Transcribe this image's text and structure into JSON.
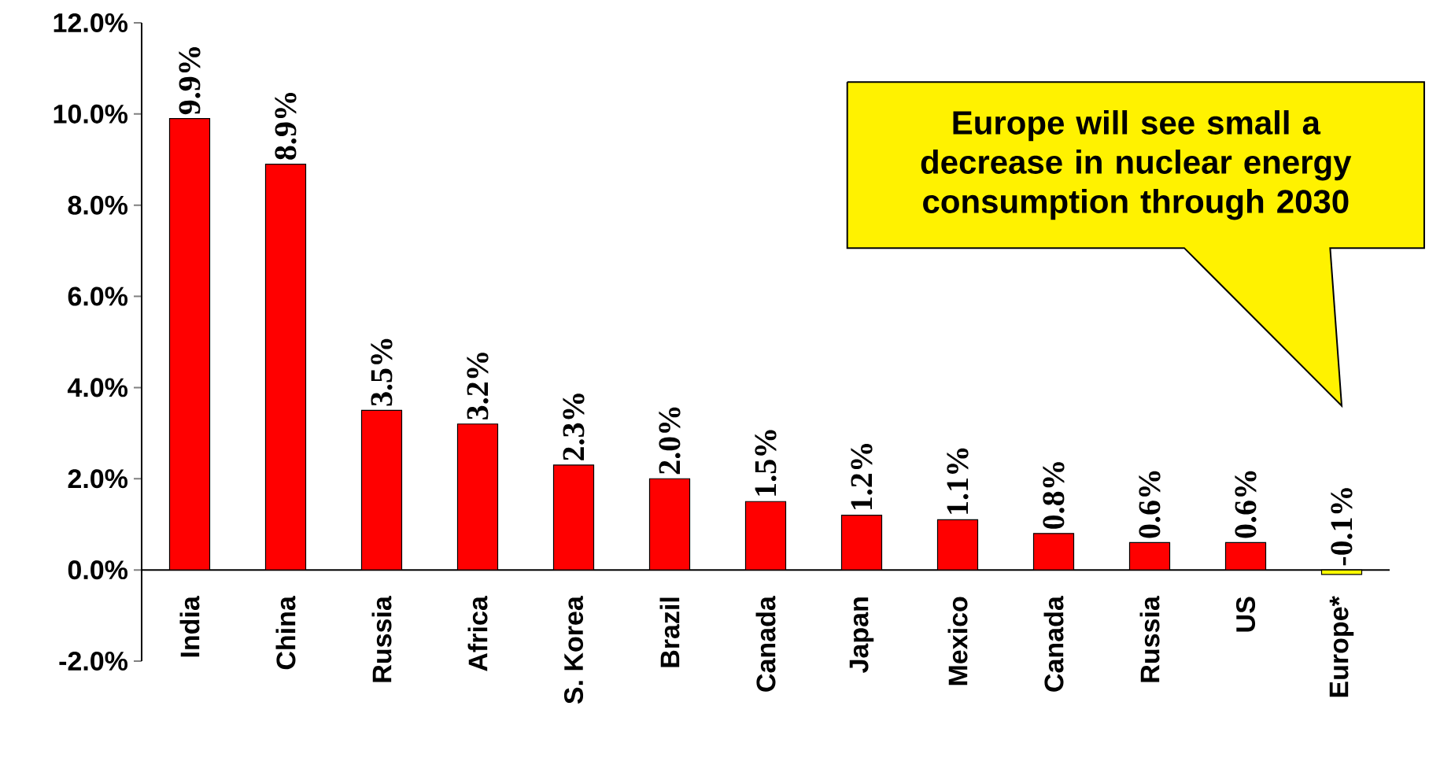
{
  "chart_data": {
    "type": "bar",
    "categories": [
      "India",
      "China",
      "Russia",
      "Africa",
      "S. Korea",
      "Brazil",
      "Canada",
      "Japan",
      "Mexico",
      "Canada",
      "Russia",
      "US",
      "Europe*"
    ],
    "values": [
      9.9,
      8.9,
      3.5,
      3.2,
      2.3,
      2.0,
      1.5,
      1.2,
      1.1,
      0.8,
      0.6,
      0.6,
      -0.1
    ],
    "colors": [
      "#ff0000",
      "#ff0000",
      "#ff0000",
      "#ff0000",
      "#ff0000",
      "#ff0000",
      "#ff0000",
      "#ff0000",
      "#ff0000",
      "#ff0000",
      "#ff0000",
      "#ff0000",
      "#ffff00"
    ],
    "value_labels": [
      "9.9%",
      "8.9%",
      "3.5%",
      "3.2%",
      "2.3%",
      "2.0%",
      "1.5%",
      "1.2%",
      "1.1%",
      "0.8%",
      "0.6%",
      "0.6%",
      "-0.1%"
    ],
    "ylim": [
      -2,
      12
    ],
    "yticks": [
      {
        "value": -2,
        "label": "-2.0%"
      },
      {
        "value": 0,
        "label": "0.0%"
      },
      {
        "value": 2,
        "label": "2.0%"
      },
      {
        "value": 4,
        "label": "4.0%"
      },
      {
        "value": 6,
        "label": "6.0%"
      },
      {
        "value": 8,
        "label": "8.0%"
      },
      {
        "value": 10,
        "label": "10.0%"
      },
      {
        "value": 12,
        "label": "12.0%"
      }
    ],
    "grid": false,
    "annotations": [
      "Europe will see small a decrease in nuclear energy consumption through 2030"
    ]
  }
}
